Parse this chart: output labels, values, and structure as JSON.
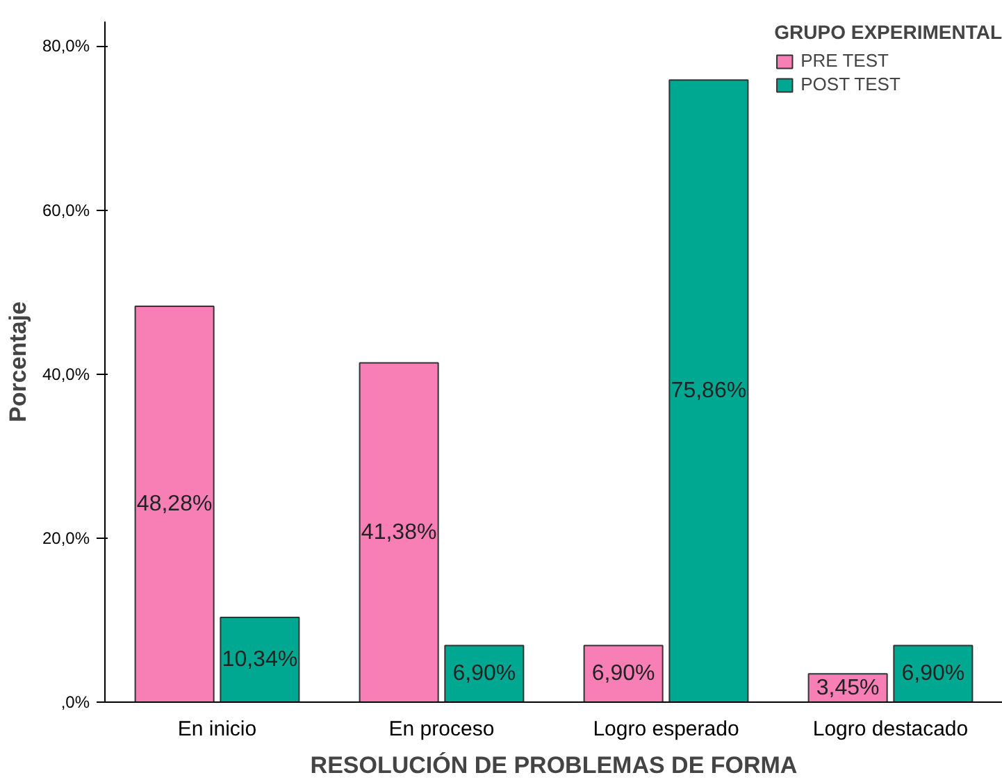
{
  "chart_data": {
    "type": "bar",
    "xlabel": "RESOLUCIÓN DE PROBLEMAS DE FORMA",
    "ylabel": "Porcentaje",
    "legend_title": "GRUPO EXPERIMENTAL",
    "categories": [
      "En inicio",
      "En proceso",
      "Logro esperado",
      "Logro destacado"
    ],
    "series": [
      {
        "name": "PRE TEST",
        "color": "#f77fb6",
        "values": [
          48.28,
          41.38,
          6.9,
          3.45
        ],
        "value_labels": [
          "48,28%",
          "41,38%",
          "6,90%",
          "3,45%"
        ]
      },
      {
        "name": "POST TEST",
        "color": "#00a891",
        "values": [
          10.34,
          6.9,
          75.86,
          6.9
        ],
        "value_labels": [
          "10,34%",
          "6,90%",
          "75,86%",
          "6,90%"
        ]
      }
    ],
    "ylim": [
      0,
      83
    ],
    "yticks": [
      {
        "value": 0,
        "label": ",0%"
      },
      {
        "value": 20,
        "label": "20,0%"
      },
      {
        "value": 40,
        "label": "40,0%"
      },
      {
        "value": 60,
        "label": "60,0%"
      },
      {
        "value": 80,
        "label": "80,0%"
      }
    ],
    "grid": false,
    "legend": "top right"
  }
}
